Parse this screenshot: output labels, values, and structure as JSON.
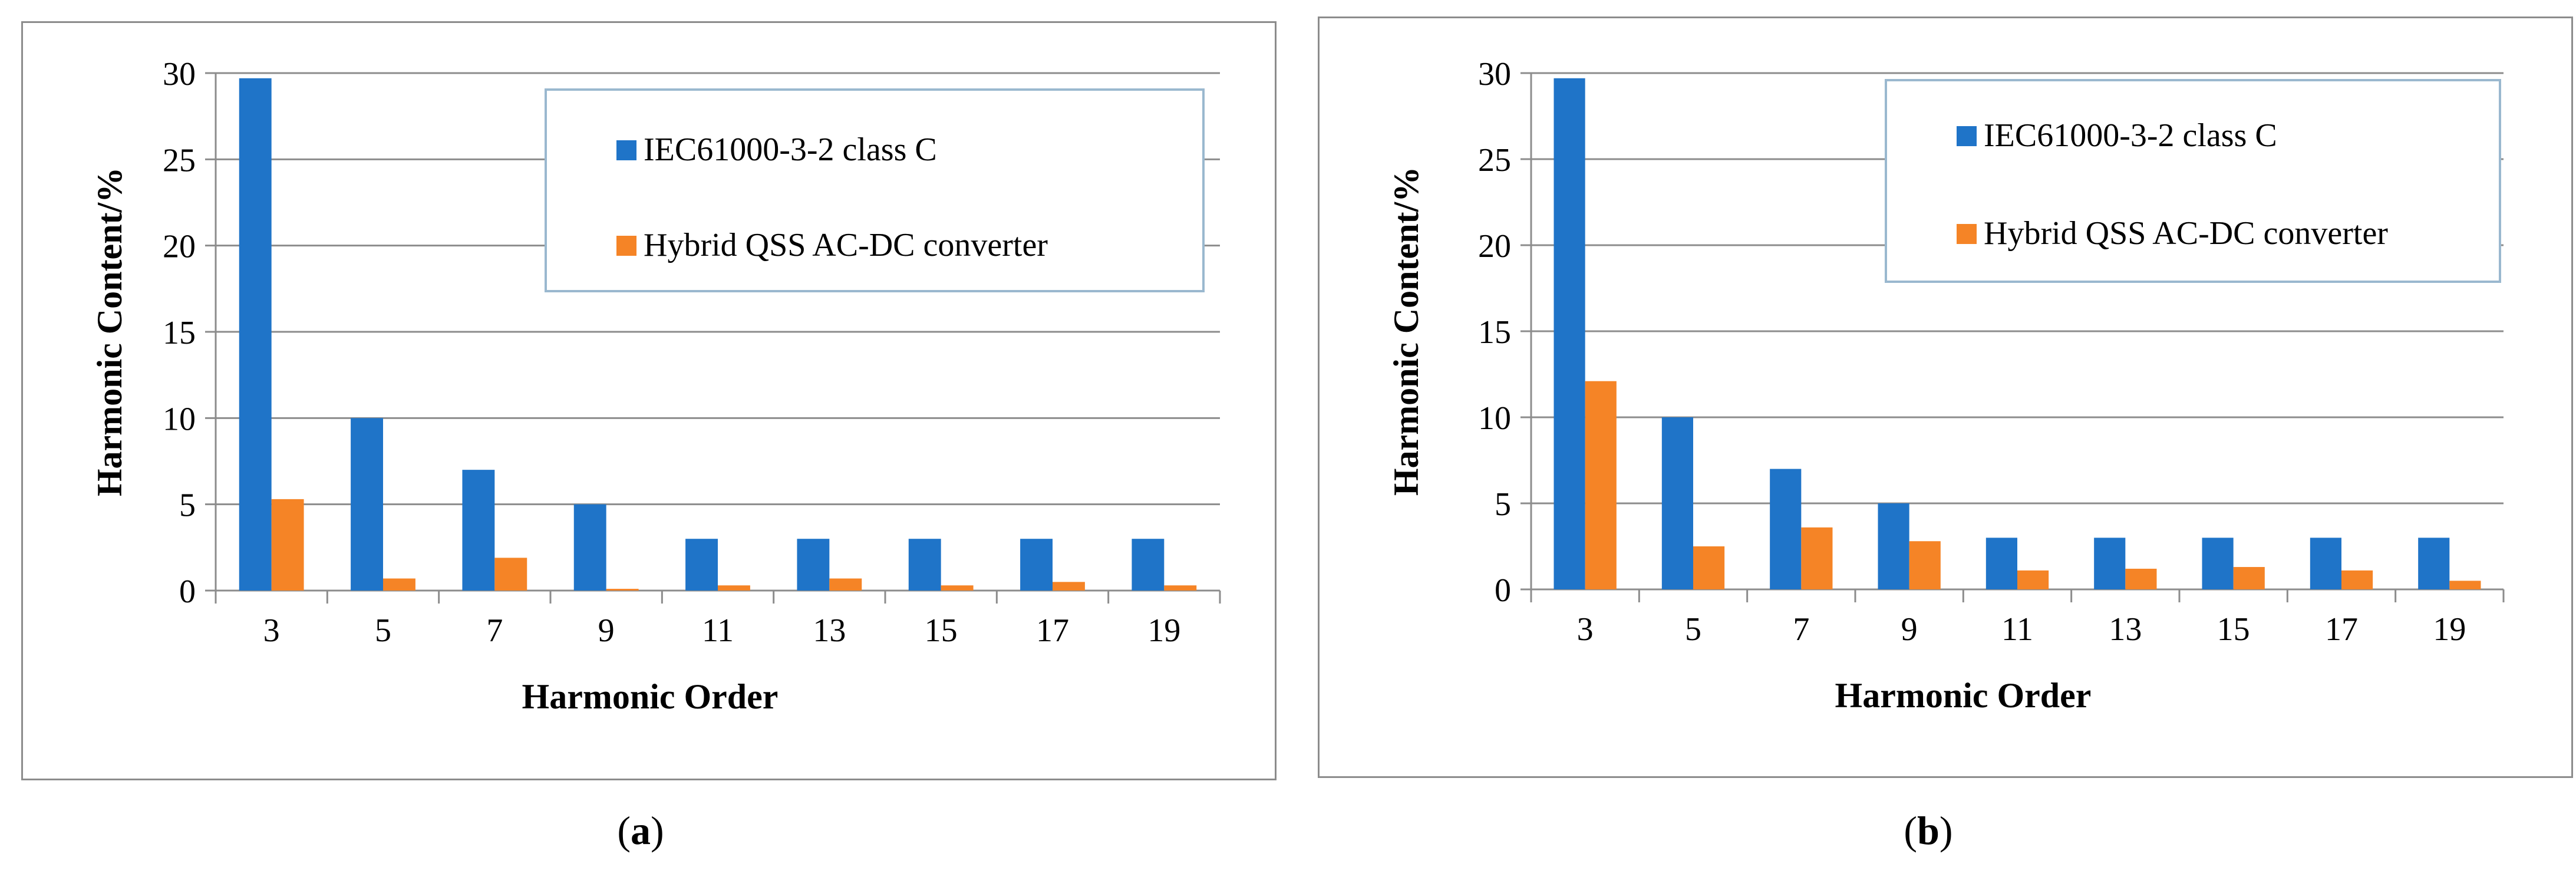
{
  "chart_data": [
    {
      "type": "bar",
      "panel_label": "a",
      "categories": [
        "3",
        "5",
        "7",
        "9",
        "11",
        "13",
        "15",
        "17",
        "19"
      ],
      "series": [
        {
          "name": "IEC61000-3-2 class C",
          "color": "#1F74C8",
          "values": [
            29.7,
            10,
            7,
            5,
            3,
            3,
            3,
            3,
            3
          ]
        },
        {
          "name": "Hybrid QSS AC-DC converter",
          "color": "#F58426",
          "values": [
            5.3,
            0.7,
            1.9,
            0.1,
            0.3,
            0.7,
            0.3,
            0.5,
            0.3
          ]
        }
      ],
      "xlabel": "Harmonic Order",
      "ylabel": "Harmonic Content/%",
      "ylim": [
        0,
        30
      ],
      "yticks": [
        "0",
        "5",
        "10",
        "15",
        "20",
        "25",
        "30"
      ],
      "grid": true,
      "legend": "top-right"
    },
    {
      "type": "bar",
      "panel_label": "b",
      "categories": [
        "3",
        "5",
        "7",
        "9",
        "11",
        "13",
        "15",
        "17",
        "19"
      ],
      "series": [
        {
          "name": "IEC61000-3-2 class C",
          "color": "#1F74C8",
          "values": [
            29.7,
            10,
            7,
            5,
            3,
            3,
            3,
            3,
            3
          ]
        },
        {
          "name": "Hybrid QSS AC-DC converter",
          "color": "#F58426",
          "values": [
            12.1,
            2.5,
            3.6,
            2.8,
            1.1,
            1.2,
            1.3,
            1.1,
            0.5
          ]
        }
      ],
      "xlabel": "Harmonic Order",
      "ylabel": "Harmonic Content/%",
      "ylim": [
        0,
        30
      ],
      "yticks": [
        "0",
        "5",
        "10",
        "15",
        "20",
        "25",
        "30"
      ],
      "grid": true,
      "legend": "top-right"
    }
  ],
  "captions": [
    {
      "open": "(",
      "letter": "a",
      "close": ")"
    },
    {
      "open": "(",
      "letter": "b",
      "close": ")"
    }
  ]
}
